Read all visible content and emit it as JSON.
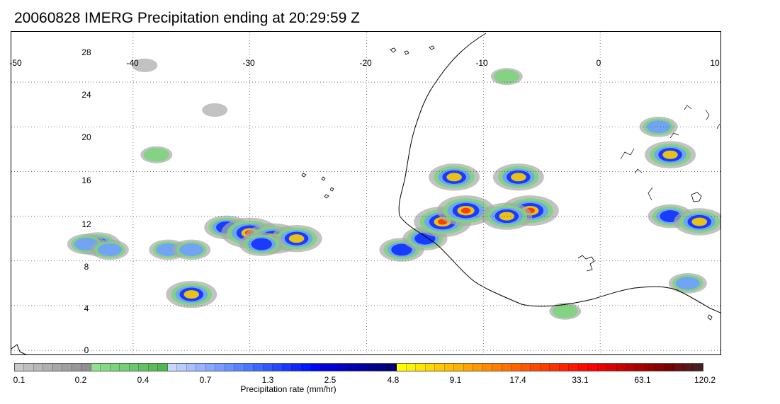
{
  "title": "20060828 IMERG Precipitation ending at 20:29:59 Z",
  "map": {
    "lon_labels": [
      "-50",
      "-40",
      "-30",
      "-20",
      "-10",
      "0",
      "10"
    ],
    "lat_labels": [
      "0",
      "4",
      "8",
      "12",
      "16",
      "20",
      "24",
      "28"
    ],
    "lon_range": [
      -50,
      10
    ],
    "lat_range": [
      -0.5,
      28.5
    ],
    "grid_lons": [
      -40,
      -30,
      -20,
      -10,
      0
    ],
    "grid_lats": [
      0,
      4,
      8,
      12,
      16,
      20,
      24
    ],
    "grid_style": "dotted"
  },
  "colorbar": {
    "title": "Precipitation rate (mm/hr)",
    "tick_labels": [
      "0.1",
      "0.2",
      "0.4",
      "0.7",
      "1.3",
      "2.5",
      "4.8",
      "9.1",
      "17.4",
      "33.1",
      "63.1",
      "120.2"
    ],
    "colors": [
      "#c8c8c8",
      "#c0c0c0",
      "#b8b8b8",
      "#b0b0b0",
      "#a8a8a8",
      "#a0a0a0",
      "#989898",
      "#909090",
      "#8fe08f",
      "#86da86",
      "#7dd47d",
      "#74ce74",
      "#6bc86b",
      "#62c262",
      "#59bc59",
      "#50b650",
      "#c8d8ff",
      "#b8ccff",
      "#a8c0ff",
      "#98b4ff",
      "#88a8ff",
      "#789cff",
      "#6890ff",
      "#5884ff",
      "#4878ff",
      "#3c68ff",
      "#3058ff",
      "#2448ff",
      "#1838ff",
      "#0c28ff",
      "#0018ff",
      "#0008f0",
      "#0000e0",
      "#0000d0",
      "#0000c0",
      "#0000b0",
      "#0000a0",
      "#000090",
      "#000080",
      "#000070",
      "#ffff00",
      "#fff200",
      "#ffe500",
      "#ffd800",
      "#ffcb00",
      "#ffbe00",
      "#ffb100",
      "#ffa400",
      "#ff9700",
      "#ff8a00",
      "#ff7d00",
      "#ff7000",
      "#ff6300",
      "#ff5600",
      "#ff4900",
      "#ff3c00",
      "#ff2f00",
      "#ff2200",
      "#ff1500",
      "#ff0800",
      "#f80000",
      "#e80000",
      "#d80000",
      "#c80000",
      "#b80000",
      "#a80000",
      "#980000",
      "#880000",
      "#780000",
      "#681010",
      "#581818",
      "#482020"
    ]
  },
  "precip_cells": [
    {
      "lon": -43,
      "lat": 9.5,
      "level": 3
    },
    {
      "lon": -44,
      "lat": 9.5,
      "level": 2
    },
    {
      "lon": -42,
      "lat": 9.0,
      "level": 2
    },
    {
      "lon": -37,
      "lat": 9.0,
      "level": 2
    },
    {
      "lon": -35,
      "lat": 9.0,
      "level": 2
    },
    {
      "lon": -35,
      "lat": 5.0,
      "level": 4
    },
    {
      "lon": -32,
      "lat": 11.0,
      "level": 3
    },
    {
      "lon": -30,
      "lat": 10.5,
      "level": 5
    },
    {
      "lon": -28,
      "lat": 10.0,
      "level": 5
    },
    {
      "lon": -26,
      "lat": 10.0,
      "level": 4
    },
    {
      "lon": -29,
      "lat": 9.5,
      "level": 3
    },
    {
      "lon": -17,
      "lat": 9.0,
      "level": 3
    },
    {
      "lon": -15,
      "lat": 10.0,
      "level": 3
    },
    {
      "lon": -13.5,
      "lat": 11.5,
      "level": 5
    },
    {
      "lon": -11.5,
      "lat": 12.5,
      "level": 5
    },
    {
      "lon": -12.5,
      "lat": 15.5,
      "level": 4
    },
    {
      "lon": -7,
      "lat": 15.5,
      "level": 4
    },
    {
      "lon": -6,
      "lat": 12.5,
      "level": 5
    },
    {
      "lon": -8,
      "lat": 12.0,
      "level": 4
    },
    {
      "lon": 6,
      "lat": 17.5,
      "level": 4
    },
    {
      "lon": 6,
      "lat": 12.0,
      "level": 3
    },
    {
      "lon": 8.5,
      "lat": 11.5,
      "level": 4
    },
    {
      "lon": 5,
      "lat": 20.0,
      "level": 2
    },
    {
      "lon": 7.5,
      "lat": 6.0,
      "level": 2
    },
    {
      "lon": -8,
      "lat": 24.5,
      "level": 1
    },
    {
      "lon": -38,
      "lat": 17.5,
      "level": 1
    },
    {
      "lon": -39,
      "lat": 25.5,
      "level": 0
    },
    {
      "lon": -33,
      "lat": 21.5,
      "level": 0
    },
    {
      "lon": -3,
      "lat": 3.5,
      "level": 1
    }
  ]
}
